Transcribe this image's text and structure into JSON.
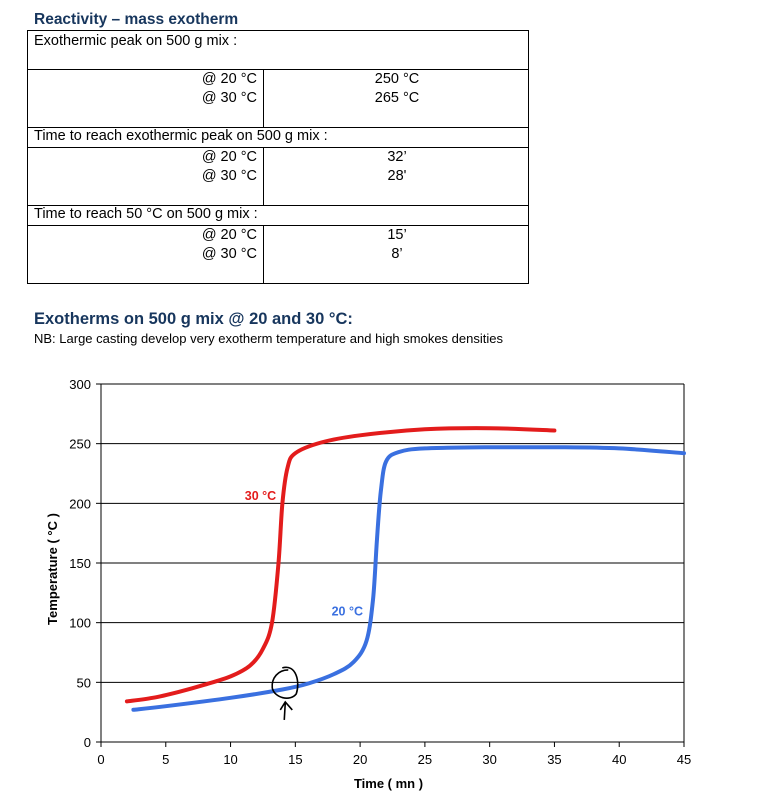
{
  "reactivity": {
    "title": "Reactivity – mass exotherm",
    "sections": [
      {
        "heading": "Exothermic peak on 500 g mix :",
        "rows": [
          {
            "label": "@ 20 °C",
            "value": "250 °C"
          },
          {
            "label": "@ 30 °C",
            "value": "265 °C"
          }
        ]
      },
      {
        "heading": "Time to reach exothermic peak on 500 g mix :",
        "rows": [
          {
            "label": "@ 20 °C",
            "value": "32’"
          },
          {
            "label": "@ 30 °C",
            "value": "28'"
          }
        ]
      },
      {
        "heading": "Time to reach 50 °C on 500 g mix :",
        "rows": [
          {
            "label": "@ 20 °C",
            "value": "15’"
          },
          {
            "label": "@ 30 °C",
            "value": "8’"
          }
        ]
      }
    ]
  },
  "exotherms": {
    "title": "Exotherms on 500 g mix @ 20 and 30 °C:",
    "note": "NB: Large casting develop very exotherm temperature and high smokes densities"
  },
  "chart_data": {
    "type": "line",
    "xlabel": "Time ( mn )",
    "ylabel": "Temperature ( °C )",
    "xlim": [
      0,
      45
    ],
    "ylim": [
      0,
      300
    ],
    "xticks": [
      0,
      5,
      10,
      15,
      20,
      25,
      30,
      35,
      40,
      45
    ],
    "yticks": [
      0,
      50,
      100,
      150,
      200,
      250,
      300
    ],
    "grid": "horizontal",
    "series": [
      {
        "name": "30 °C",
        "color": "#e31c1c",
        "points": [
          [
            2,
            34
          ],
          [
            4,
            37
          ],
          [
            6,
            42
          ],
          [
            8,
            48
          ],
          [
            10,
            55
          ],
          [
            11.5,
            64
          ],
          [
            12.5,
            78
          ],
          [
            13.2,
            100
          ],
          [
            13.7,
            150
          ],
          [
            14,
            200
          ],
          [
            14.4,
            230
          ],
          [
            15,
            242
          ],
          [
            17,
            251
          ],
          [
            20,
            257
          ],
          [
            25,
            262
          ],
          [
            30,
            263
          ],
          [
            35,
            261
          ]
        ]
      },
      {
        "name": "20 °C",
        "color": "#3a70e0",
        "points": [
          [
            2.5,
            27
          ],
          [
            5,
            30
          ],
          [
            10,
            37
          ],
          [
            14,
            44
          ],
          [
            16,
            49
          ],
          [
            18,
            57
          ],
          [
            19.5,
            67
          ],
          [
            20.5,
            85
          ],
          [
            21,
            120
          ],
          [
            21.3,
            170
          ],
          [
            21.6,
            210
          ],
          [
            22,
            235
          ],
          [
            23,
            243
          ],
          [
            25,
            246
          ],
          [
            30,
            247
          ],
          [
            35,
            247
          ],
          [
            40,
            246
          ],
          [
            45,
            242
          ]
        ]
      }
    ],
    "annotation": {
      "x": 14.3,
      "y": 47,
      "shape": "circled mark with upward arrow"
    }
  }
}
